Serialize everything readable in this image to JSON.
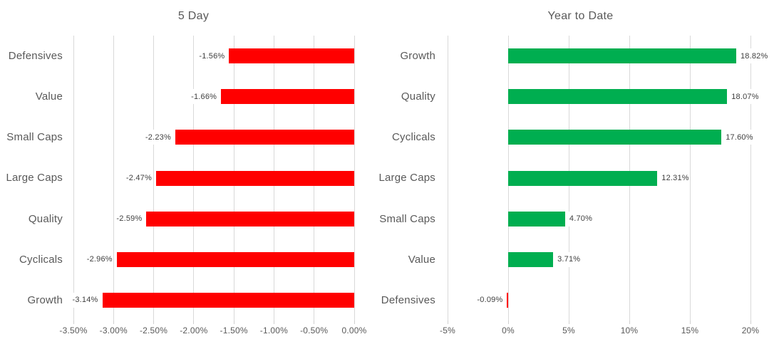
{
  "page": {
    "background_color": "#FFFFFF",
    "grid_color": "#D9D9D9",
    "text_color": "#595959",
    "data_label_color": "#404040"
  },
  "chart_data": [
    {
      "type": "bar",
      "orientation": "horizontal",
      "title": "5 Day",
      "categories": [
        "Defensives",
        "Value",
        "Small Caps",
        "Large Caps",
        "Quality",
        "Cyclicals",
        "Growth"
      ],
      "values": [
        -1.56,
        -1.66,
        -2.23,
        -2.47,
        -2.59,
        -2.96,
        -3.14
      ],
      "data_labels": [
        "-1.56%",
        "-1.66%",
        "-2.23%",
        "-2.47%",
        "-2.59%",
        "-2.96%",
        "-3.14%"
      ],
      "xlim": [
        -3.5,
        0
      ],
      "x_ticks": [
        {
          "label": "-3.50%",
          "value": -3.5
        },
        {
          "label": "-3.00%",
          "value": -3.0
        },
        {
          "label": "-2.50%",
          "value": -2.5
        },
        {
          "label": "-2.00%",
          "value": -2.0
        },
        {
          "label": "-1.50%",
          "value": -1.5
        },
        {
          "label": "-1.00%",
          "value": -1.0
        },
        {
          "label": "-0.50%",
          "value": -0.5
        },
        {
          "label": "0.00%",
          "value": 0.0
        }
      ],
      "grid": true,
      "legend": false,
      "xlabel": "",
      "ylabel": "",
      "positive_color": "#00AE50",
      "negative_color": "#FF0000"
    },
    {
      "type": "bar",
      "orientation": "horizontal",
      "title": "Year to Date",
      "categories": [
        "Growth",
        "Quality",
        "Cyclicals",
        "Large Caps",
        "Small Caps",
        "Value",
        "Defensives"
      ],
      "values": [
        18.82,
        18.07,
        17.6,
        12.31,
        4.7,
        3.71,
        -0.09
      ],
      "data_labels": [
        "18.82%",
        "18.07%",
        "17.60%",
        "12.31%",
        "4.70%",
        "3.71%",
        "-0.09%"
      ],
      "xlim": [
        -5,
        20
      ],
      "x_ticks": [
        {
          "label": "-5%",
          "value": -5
        },
        {
          "label": "0%",
          "value": 0
        },
        {
          "label": "5%",
          "value": 5
        },
        {
          "label": "10%",
          "value": 10
        },
        {
          "label": "15%",
          "value": 15
        },
        {
          "label": "20%",
          "value": 20
        }
      ],
      "grid": true,
      "legend": false,
      "xlabel": "",
      "ylabel": "",
      "positive_color": "#00AE50",
      "negative_color": "#FF0000"
    }
  ]
}
